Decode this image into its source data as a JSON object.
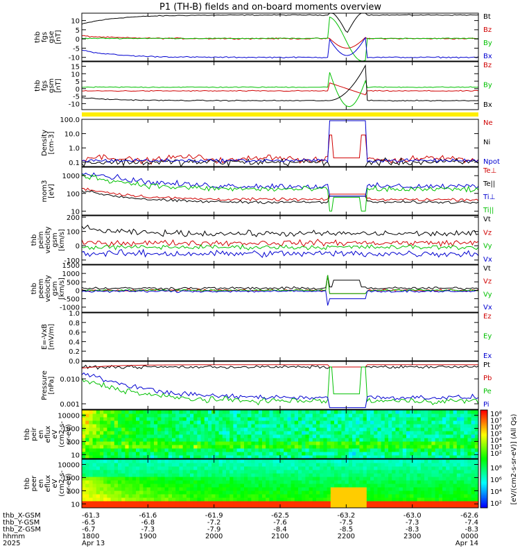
{
  "chart_data": {
    "title": "P1 (TH-B) fields and on-board moments overview",
    "type": "line",
    "panels": [
      {
        "id": "fgs_gse",
        "ylabel_lines": [
          "thb",
          "fgs",
          "gse",
          "[nT]"
        ],
        "ylim": [
          -12,
          14
        ],
        "yticks": [
          10,
          5,
          0,
          -5,
          -10
        ],
        "scale": "linear",
        "series": [
          {
            "name": "Bt",
            "color": "#000000"
          },
          {
            "name": "Bz",
            "color": "#d00000"
          },
          {
            "name": "By",
            "color": "#00c000"
          },
          {
            "name": "Bx",
            "color": "#0000d0"
          }
        ]
      },
      {
        "id": "fgs_gsm",
        "ylabel_lines": [
          "thb",
          "fgs",
          "gsm",
          "[nT]"
        ],
        "ylim": [
          -14,
          18
        ],
        "yticks": [
          15,
          10,
          5,
          0,
          -5,
          -10
        ],
        "scale": "linear",
        "series": [
          {
            "name": "Bz",
            "color": "#d00000"
          },
          {
            "name": "By",
            "color": "#00c000"
          },
          {
            "name": "Bx",
            "color": "#000000"
          }
        ]
      },
      {
        "id": "density",
        "ylabel_lines": [
          "Density",
          "[cm-3]"
        ],
        "ylim": [
          0.05,
          100
        ],
        "yticks": [
          100.0,
          10.0,
          1.0,
          0.1
        ],
        "ytick_labels": [
          "100.0",
          "10.0",
          "1.0",
          "0.1"
        ],
        "scale": "log",
        "series": [
          {
            "name": "Ne",
            "color": "#d00000"
          },
          {
            "name": "Ni",
            "color": "#000000"
          },
          {
            "name": "Npot",
            "color": "#0000d0"
          }
        ]
      },
      {
        "id": "temperature",
        "ylabel_lines": [
          "mom3",
          "[eV]"
        ],
        "ylim": [
          6,
          3000
        ],
        "yticks": [
          1000,
          100,
          10
        ],
        "scale": "log",
        "series": [
          {
            "name": "Te⊥",
            "color": "#d00000"
          },
          {
            "name": "Te||",
            "color": "#000000"
          },
          {
            "name": "Ti⊥",
            "color": "#0000d0"
          },
          {
            "name": "Ti||",
            "color": "#00c000"
          }
        ]
      },
      {
        "id": "peim_velocity",
        "ylabel_lines": [
          "thb",
          "peim",
          "velocity",
          "gsm",
          "[km/s]"
        ],
        "ylim": [
          -130,
          210
        ],
        "yticks": [
          200,
          100,
          0,
          -100
        ],
        "scale": "linear",
        "series": [
          {
            "name": "Vt",
            "color": "#000000"
          },
          {
            "name": "Vz",
            "color": "#d00000"
          },
          {
            "name": "Vy",
            "color": "#00c000"
          },
          {
            "name": "Vx",
            "color": "#0000d0"
          }
        ]
      },
      {
        "id": "peem_velocity",
        "ylabel_lines": [
          "thb",
          "peem",
          "velocity",
          "gsm",
          "[km/s]"
        ],
        "ylim": [
          -1300,
          1500
        ],
        "yticks": [
          1500,
          1000,
          500,
          0,
          -500,
          -1000
        ],
        "scale": "linear",
        "series": [
          {
            "name": "Vt",
            "color": "#000000"
          },
          {
            "name": "Vz",
            "color": "#d00000"
          },
          {
            "name": "Vy",
            "color": "#00c000"
          },
          {
            "name": "Vx",
            "color": "#0000d0"
          }
        ]
      },
      {
        "id": "efield",
        "ylabel_lines": [
          "E=-VxB",
          "[mV/m]"
        ],
        "ylim": [
          0,
          1
        ],
        "yticks": [
          1.0,
          0.8,
          0.6,
          0.4,
          0.2,
          0.0
        ],
        "ytick_labels": [
          "1.0",
          "0.8",
          "0.6",
          "0.4",
          "0.2",
          "0.0"
        ],
        "scale": "linear",
        "series": [
          {
            "name": "Ez",
            "color": "#d00000"
          },
          {
            "name": "Ey",
            "color": "#00c000"
          },
          {
            "name": "Ex",
            "color": "#0000d0"
          }
        ]
      },
      {
        "id": "pressure",
        "ylabel_lines": [
          "Pressure",
          "[nPa]"
        ],
        "ylim": [
          0.0006,
          0.05
        ],
        "yticks": [
          0.01,
          0.001
        ],
        "ytick_labels": [
          "0.010",
          "0.001"
        ],
        "scale": "log",
        "series": [
          {
            "name": "Pt",
            "color": "#000000"
          },
          {
            "name": "Pb",
            "color": "#d00000"
          },
          {
            "name": "Pe",
            "color": "#00c000"
          },
          {
            "name": "Pi",
            "color": "#0000d0"
          }
        ]
      },
      {
        "id": "peir_spec",
        "ylabel_lines": [
          "thb",
          "peir",
          "en",
          "eflux",
          "eV",
          "(cm2-s-",
          "sr-eV)"
        ],
        "ylim": [
          5,
          25000
        ],
        "yticks": [
          10000,
          1000,
          100,
          10
        ],
        "scale": "log",
        "spectrogram": true
      },
      {
        "id": "peer_spec",
        "ylabel_lines": [
          "thb",
          "peer",
          "en",
          "eflux",
          "eV",
          "(cm2-s-",
          "sr-eV)"
        ],
        "ylim": [
          5,
          25000
        ],
        "yticks": [
          10000,
          1000,
          100,
          10
        ],
        "scale": "log",
        "spectrogram": true
      }
    ],
    "colorbar": {
      "label": "[eV/(cm2-s-sr-eV)] (All Qs)",
      "ticks_upper": [
        "10⁸",
        "10⁷",
        "10⁶",
        "10⁵",
        "10⁴",
        "10³",
        "10²"
      ],
      "ticks_lower": [
        "10⁸",
        "10⁶",
        "10⁴",
        "10²"
      ]
    },
    "x_axis": {
      "rows": [
        {
          "label": "thb_X-GSM",
          "values": [
            "-61.3",
            "-61.6",
            "-61.9",
            "-62.5",
            "-63.2",
            "-63.0",
            "-62.6"
          ]
        },
        {
          "label": "thb_Y-GSM",
          "values": [
            "-6.5",
            "-6.8",
            "-7.2",
            "-7.6",
            "-7.5",
            "-7.3",
            "-7.4"
          ]
        },
        {
          "label": "thb_Z-GSM",
          "values": [
            "-6.7",
            "-7.3",
            "-7.9",
            "-8.4",
            "-8.5",
            "-8.3",
            "-8.3"
          ]
        },
        {
          "label": "hhmm",
          "values": [
            "1800",
            "1900",
            "2000",
            "2100",
            "2200",
            "2300",
            "0000"
          ]
        },
        {
          "label": "2025",
          "values": [
            "Apr 13",
            "",
            "",
            "",
            "",
            "",
            "Apr 14"
          ]
        }
      ]
    },
    "mode_bar": {
      "color": "#ffee00"
    },
    "legend_colors": {
      "black": "#000000",
      "red": "#d00000",
      "green": "#00c000",
      "blue": "#0000d0"
    }
  }
}
